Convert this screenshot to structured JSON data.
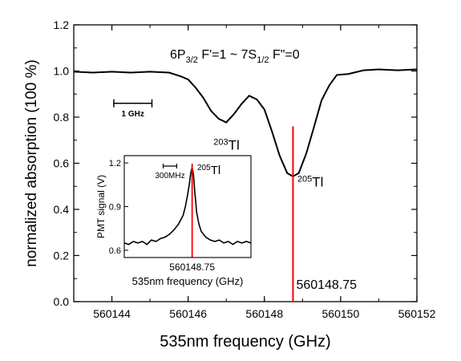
{
  "chart_data": [
    {
      "type": "line",
      "annotation": "6P3/2 F'=1 ~ 7S1/2 F\"=0",
      "annotation_parts": {
        "t1": "6P",
        "t1sub": "3/2",
        "t2": " F'=1 ~ 7S",
        "t2sub": "1/2",
        "t3": " F\"=0"
      },
      "xlabel": "535nm frequency (GHz)",
      "ylabel": "normalized absorption (100 %)",
      "xlim": [
        560143,
        560152
      ],
      "ylim": [
        0.0,
        1.2
      ],
      "xticks": [
        560144,
        560146,
        560148,
        560150,
        560152
      ],
      "yticks": [
        0.0,
        0.2,
        0.4,
        0.6,
        0.8,
        1.0,
        1.2
      ],
      "ytick_labels": [
        "0.0",
        "0.2",
        "0.4",
        "0.6",
        "0.8",
        "1.0",
        "1.2"
      ],
      "grid": false,
      "scale_bar": {
        "label": "1 GHz",
        "x": [
          560144.05,
          560145.05
        ],
        "y": 0.86
      },
      "marker": {
        "x": 560148.75,
        "label": "560148.75",
        "color": "#ff0000"
      },
      "peak_labels": [
        {
          "mass": "203",
          "symbol": "Tl",
          "x": 560147.0,
          "y": 0.66
        },
        {
          "mass": "205",
          "symbol": "Tl",
          "x": 560149.2,
          "y": 0.5
        }
      ],
      "series": [
        {
          "x": [
            560143.0,
            560143.5,
            560144.0,
            560144.5,
            560145.0,
            560145.5,
            560145.8,
            560146.0,
            560146.2,
            560146.4,
            560146.6,
            560146.8,
            560147.0,
            560147.2,
            560147.4,
            560147.6,
            560147.8,
            560148.0,
            560148.2,
            560148.4,
            560148.6,
            560148.75,
            560148.9,
            560149.1,
            560149.3,
            560149.5,
            560149.7,
            560149.9,
            560150.2,
            560150.6,
            560151.0,
            560151.5,
            560152.0
          ],
          "y": [
            1.0,
            0.99,
            1.0,
            0.99,
            1.0,
            0.99,
            0.98,
            0.96,
            0.93,
            0.88,
            0.83,
            0.79,
            0.78,
            0.81,
            0.86,
            0.89,
            0.88,
            0.83,
            0.74,
            0.63,
            0.56,
            0.54,
            0.56,
            0.64,
            0.76,
            0.87,
            0.94,
            0.98,
            0.99,
            1.0,
            1.01,
            1.0,
            1.01
          ],
          "color": "#000000"
        }
      ]
    },
    {
      "type": "line",
      "xlabel": "535nm frequency (GHz)",
      "ylabel": "PMT signal (V)",
      "ylim": [
        0.55,
        1.25
      ],
      "yticks": [
        0.6,
        0.9,
        1.2
      ],
      "ytick_labels": [
        "0.6",
        "0.9",
        "1.2"
      ],
      "scale_bar": {
        "label": "300MHz",
        "x": [
          -0.64,
          -0.34
        ]
      },
      "marker": {
        "x": 0.0,
        "label": "560148.75",
        "color": "#ff0000"
      },
      "peak_label": {
        "mass": "205",
        "symbol": "Tl"
      },
      "series": [
        {
          "x": [
            -1.5,
            -1.4,
            -1.3,
            -1.2,
            -1.1,
            -1.0,
            -0.9,
            -0.8,
            -0.7,
            -0.6,
            -0.5,
            -0.4,
            -0.3,
            -0.2,
            -0.15,
            -0.1,
            -0.06,
            -0.03,
            0.0,
            0.03,
            0.06,
            0.1,
            0.15,
            0.2,
            0.3,
            0.4,
            0.5,
            0.6,
            0.7,
            0.8,
            0.9,
            1.0,
            1.1,
            1.2,
            1.3
          ],
          "y": [
            0.65,
            0.64,
            0.66,
            0.65,
            0.66,
            0.64,
            0.67,
            0.66,
            0.68,
            0.69,
            0.71,
            0.74,
            0.78,
            0.84,
            0.9,
            0.98,
            1.06,
            1.13,
            1.17,
            1.12,
            1.0,
            0.86,
            0.78,
            0.73,
            0.69,
            0.67,
            0.66,
            0.67,
            0.65,
            0.66,
            0.64,
            0.66,
            0.65,
            0.66,
            0.65
          ],
          "color": "#000000"
        }
      ]
    }
  ]
}
